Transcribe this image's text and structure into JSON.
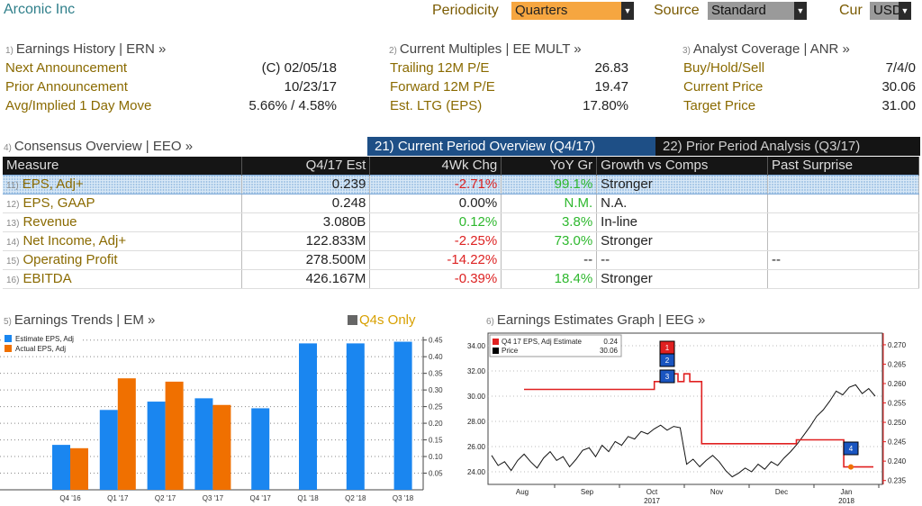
{
  "header": {
    "title": "Arconic Inc",
    "periodicity_label": "Periodicity",
    "periodicity_value": "Quarters",
    "source_label": "Source",
    "source_value": "Standard",
    "cur_label": "Cur",
    "cur_value": "USD"
  },
  "earnings_history": {
    "num": "1)",
    "title": "Earnings History | ERN »",
    "rows": [
      {
        "label": "Next Announcement",
        "value": "(C)  02/05/18"
      },
      {
        "label": "Prior Announcement",
        "value": "10/23/17"
      },
      {
        "label": "Avg/Implied 1 Day Move",
        "value": "5.66% / 4.58%"
      }
    ]
  },
  "current_multiples": {
    "num": "2)",
    "title": "Current Multiples | EE MULT »",
    "rows": [
      {
        "label": "Trailing 12M P/E",
        "value": "26.83"
      },
      {
        "label": "Forward 12M P/E",
        "value": "19.47"
      },
      {
        "label": "Est. LTG (EPS)",
        "value": "17.80%"
      }
    ]
  },
  "analyst_coverage": {
    "num": "3)",
    "title": "Analyst Coverage | ANR »",
    "rows": [
      {
        "label": "Buy/Hold/Sell",
        "value": "7/4/0"
      },
      {
        "label": "Current Price",
        "value": "30.06"
      },
      {
        "label": "Target Price",
        "value": "31.00"
      }
    ]
  },
  "consensus": {
    "num": "4)",
    "title": "Consensus Overview | EEO »",
    "tab_current": "21) Current Period Overview (Q4/17)",
    "tab_prior": "22) Prior Period Analysis (Q3/17)",
    "columns": [
      "Measure",
      "Q4/17 Est",
      "4Wk Chg",
      "YoY Gr",
      "Growth vs Comps",
      "Past Surprise"
    ],
    "rows": [
      {
        "n": "11)",
        "measure": "EPS, Adj+",
        "est": "0.239",
        "chg": "-2.71%",
        "chg_sign": "neg",
        "yoy": "99.1%",
        "yoy_sign": "pos",
        "growth": "Stronger",
        "surprise": ""
      },
      {
        "n": "12)",
        "measure": "EPS, GAAP",
        "est": "0.248",
        "chg": "0.00%",
        "chg_sign": "zero",
        "yoy": "N.M.",
        "yoy_sign": "pos",
        "growth": "N.A.",
        "surprise": ""
      },
      {
        "n": "13)",
        "measure": "Revenue",
        "est": "3.080B",
        "chg": "0.12%",
        "chg_sign": "pos",
        "yoy": "3.8%",
        "yoy_sign": "pos",
        "growth": "In-line",
        "surprise": ""
      },
      {
        "n": "14)",
        "measure": "Net Income, Adj+",
        "est": "122.833M",
        "chg": "-2.25%",
        "chg_sign": "neg",
        "yoy": "73.0%",
        "yoy_sign": "pos",
        "growth": "Stronger",
        "surprise": ""
      },
      {
        "n": "15)",
        "measure": "Operating Profit",
        "est": "278.500M",
        "chg": "-14.22%",
        "chg_sign": "neg",
        "yoy": "--",
        "yoy_sign": "zero",
        "growth": "--",
        "surprise": "--"
      },
      {
        "n": "16)",
        "measure": "EBITDA",
        "est": "426.167M",
        "chg": "-0.39%",
        "chg_sign": "neg",
        "yoy": "18.4%",
        "yoy_sign": "pos",
        "growth": "Stronger",
        "surprise": ""
      }
    ]
  },
  "earnings_trends": {
    "num": "5)",
    "title": "Earnings Trends | EM »",
    "toggle_label": "Q4s Only"
  },
  "earnings_graph": {
    "num": "6)",
    "title": "Earnings Estimates Graph | EEG »"
  },
  "chart_data": [
    {
      "type": "bar",
      "categories": [
        "Q4 '16",
        "Q1 '17",
        "Q2 '17",
        "Q3 '17",
        "Q4 '17",
        "Q1 '18",
        "Q2 '18",
        "Q3 '18"
      ],
      "series": [
        {
          "name": "Estimate EPS, Adj",
          "color": "#1a86f0",
          "values": [
            0.135,
            0.24,
            0.265,
            0.275,
            0.245,
            0.44,
            0.44,
            0.445
          ]
        },
        {
          "name": "Actual EPS, Adj",
          "color": "#f07000",
          "values": [
            0.125,
            0.335,
            0.325,
            0.255,
            null,
            null,
            null,
            null
          ]
        }
      ],
      "yticks": [
        "0.05",
        "0.10",
        "0.15",
        "0.20",
        "0.25",
        "0.30",
        "0.35",
        "0.40",
        "0.45"
      ],
      "ylim": [
        0,
        0.46
      ]
    },
    {
      "type": "line",
      "x_labels": [
        "Aug",
        "Sep",
        "Oct",
        "Nov",
        "Dec",
        "Jan"
      ],
      "x_sublabels": [
        "2017",
        "2018"
      ],
      "left_ticks": [
        "24.00",
        "26.00",
        "28.00",
        "30.00",
        "32.00",
        "34.00"
      ],
      "right_ticks": [
        "0.235",
        "0.240",
        "0.245",
        "0.250",
        "0.255",
        "0.260",
        "0.265",
        "0.270"
      ],
      "legend": [
        {
          "name": "Q4 17 EPS, Adj Estimate",
          "value": "0.24",
          "color": "#e02020"
        },
        {
          "name": "Price",
          "value": "30.06",
          "color": "#000000"
        }
      ],
      "markers": [
        "1",
        "2",
        "3",
        "4"
      ],
      "price": [
        25.3,
        24.5,
        24.8,
        24.1,
        24.9,
        25.4,
        24.8,
        24.3,
        25.1,
        25.6,
        24.9,
        25.2,
        24.4,
        25.0,
        25.7,
        25.9,
        25.2,
        26.1,
        25.6,
        26.4,
        26.1,
        26.8,
        26.6,
        27.2,
        27.0,
        27.4,
        27.7,
        27.3,
        27.6,
        27.5,
        24.6,
        25.0,
        24.4,
        24.9,
        25.3,
        24.8,
        24.1,
        23.6,
        23.9,
        24.3,
        24.0,
        24.6,
        24.2,
        24.8,
        24.5,
        25.1,
        25.6,
        26.2,
        26.9,
        27.6,
        28.4,
        28.9,
        29.6,
        30.4,
        30.1,
        30.7,
        30.9,
        30.2,
        30.6,
        30.0
      ],
      "estimate": [
        0.2585,
        0.2585,
        0.2585,
        0.2585,
        0.2585,
        0.2585,
        0.2585,
        0.2585,
        0.2585,
        0.2585,
        0.2585,
        0.2585,
        0.2585,
        0.2585,
        0.2585,
        0.2585,
        0.2585,
        0.2585,
        0.2585,
        0.2585,
        0.2585,
        0.2585,
        0.2605,
        0.2605,
        0.2625,
        0.2625,
        0.2605,
        0.2625,
        0.2605,
        0.2605,
        0.2445,
        0.2445,
        0.2445,
        0.2445,
        0.2445,
        0.2445,
        0.2445,
        0.2445,
        0.2445,
        0.2445,
        0.2445,
        0.2445,
        0.2445,
        0.2445,
        0.2445,
        0.2445,
        0.2455,
        0.2455,
        0.2455,
        0.2455,
        0.2455,
        0.2455,
        0.2455,
        0.2455,
        0.2385,
        0.2385,
        0.2385,
        0.2385,
        0.2385,
        0.2385
      ],
      "ylim_left": [
        23.0,
        35.0
      ],
      "ylim_right": [
        0.234,
        0.273
      ]
    }
  ]
}
